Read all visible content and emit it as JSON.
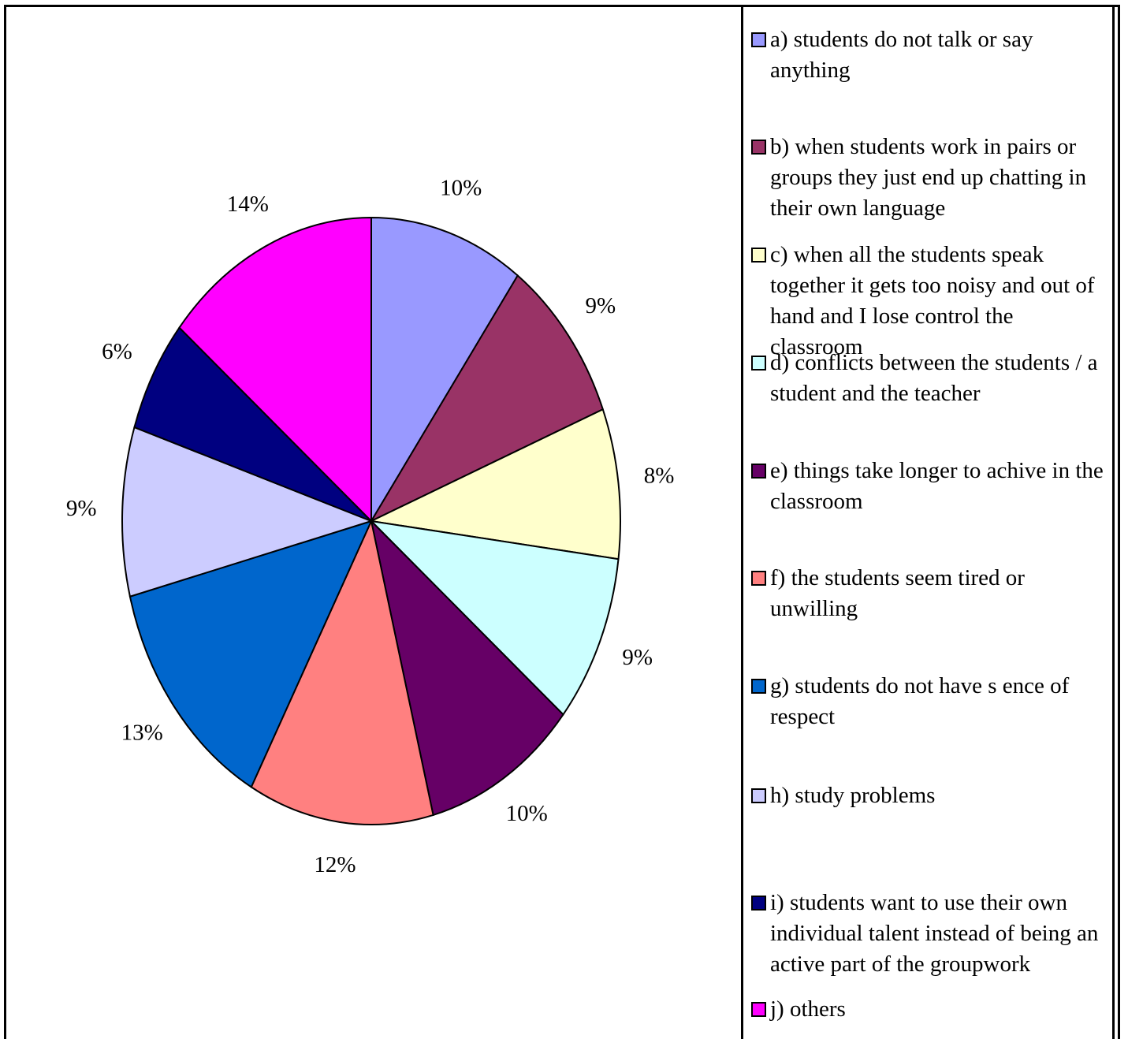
{
  "chart_data": {
    "type": "pie",
    "title": "",
    "start_angle_deg": 0,
    "direction": "clockwise",
    "slices": [
      {
        "label": "a) students do not talk or say anything",
        "value": 10,
        "value_label": "10%",
        "color": "#9999FF"
      },
      {
        "label": "b) when students work in pairs or groups they just end up chatting in their own language",
        "value": 9,
        "value_label": "9%",
        "color": "#993366"
      },
      {
        "label": "c) when all the students speak together it gets too noisy and out of hand and I lose control the classroom",
        "value": 8,
        "value_label": "8%",
        "color": "#FFFFCC"
      },
      {
        "label": "d) conflicts between the students / a student and the teacher",
        "value": 9,
        "value_label": "9%",
        "color": "#CCFFFF"
      },
      {
        "label": "e) things take longer to achive in the classroom",
        "value": 10,
        "value_label": "10%",
        "color": "#660066"
      },
      {
        "label": "f) the students seem tired or unwilling",
        "value": 12,
        "value_label": "12%",
        "color": "#FF8080"
      },
      {
        "label": "g) students do not have s ence of respect",
        "value": 13,
        "value_label": "13%",
        "color": "#0066CC"
      },
      {
        "label": "h) study problems",
        "value": 9,
        "value_label": "9%",
        "color": "#CCCCFF"
      },
      {
        "label": "i) students want to use their own individual talent instead of being an active part of the groupwork",
        "value": 6,
        "value_label": "6%",
        "color": "#000080"
      },
      {
        "label": "j) others",
        "value": 14,
        "value_label": "14%",
        "color": "#FF00FF"
      }
    ],
    "legend_position": "right"
  }
}
